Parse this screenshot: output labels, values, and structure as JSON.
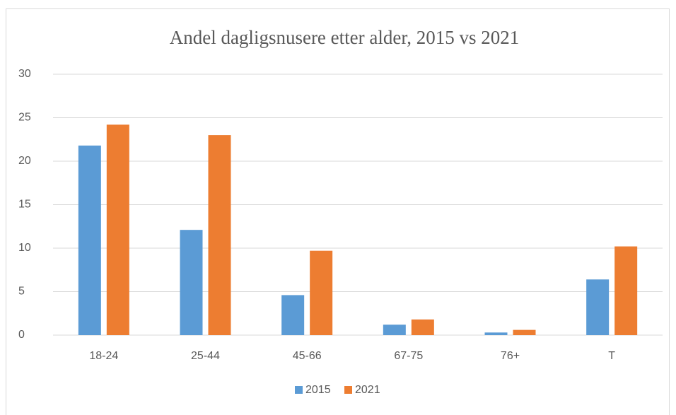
{
  "chart_data": {
    "type": "bar",
    "title": "Andel dagligsnusere etter alder, 2015 vs 2021",
    "categories": [
      "18-24",
      "25-44",
      "45-66",
      "67-75",
      "76+",
      "T"
    ],
    "series": [
      {
        "name": "2015",
        "color": "#5b9bd5",
        "values": [
          21.8,
          12.1,
          4.6,
          1.2,
          0.3,
          6.4
        ]
      },
      {
        "name": "2021",
        "color": "#ed7d31",
        "values": [
          24.2,
          23.0,
          9.7,
          1.8,
          0.6,
          10.2
        ]
      }
    ],
    "ylim": [
      0,
      30
    ],
    "yticks": [
      0,
      5,
      10,
      15,
      20,
      25,
      30
    ],
    "grid": true,
    "legend": "bottom"
  }
}
